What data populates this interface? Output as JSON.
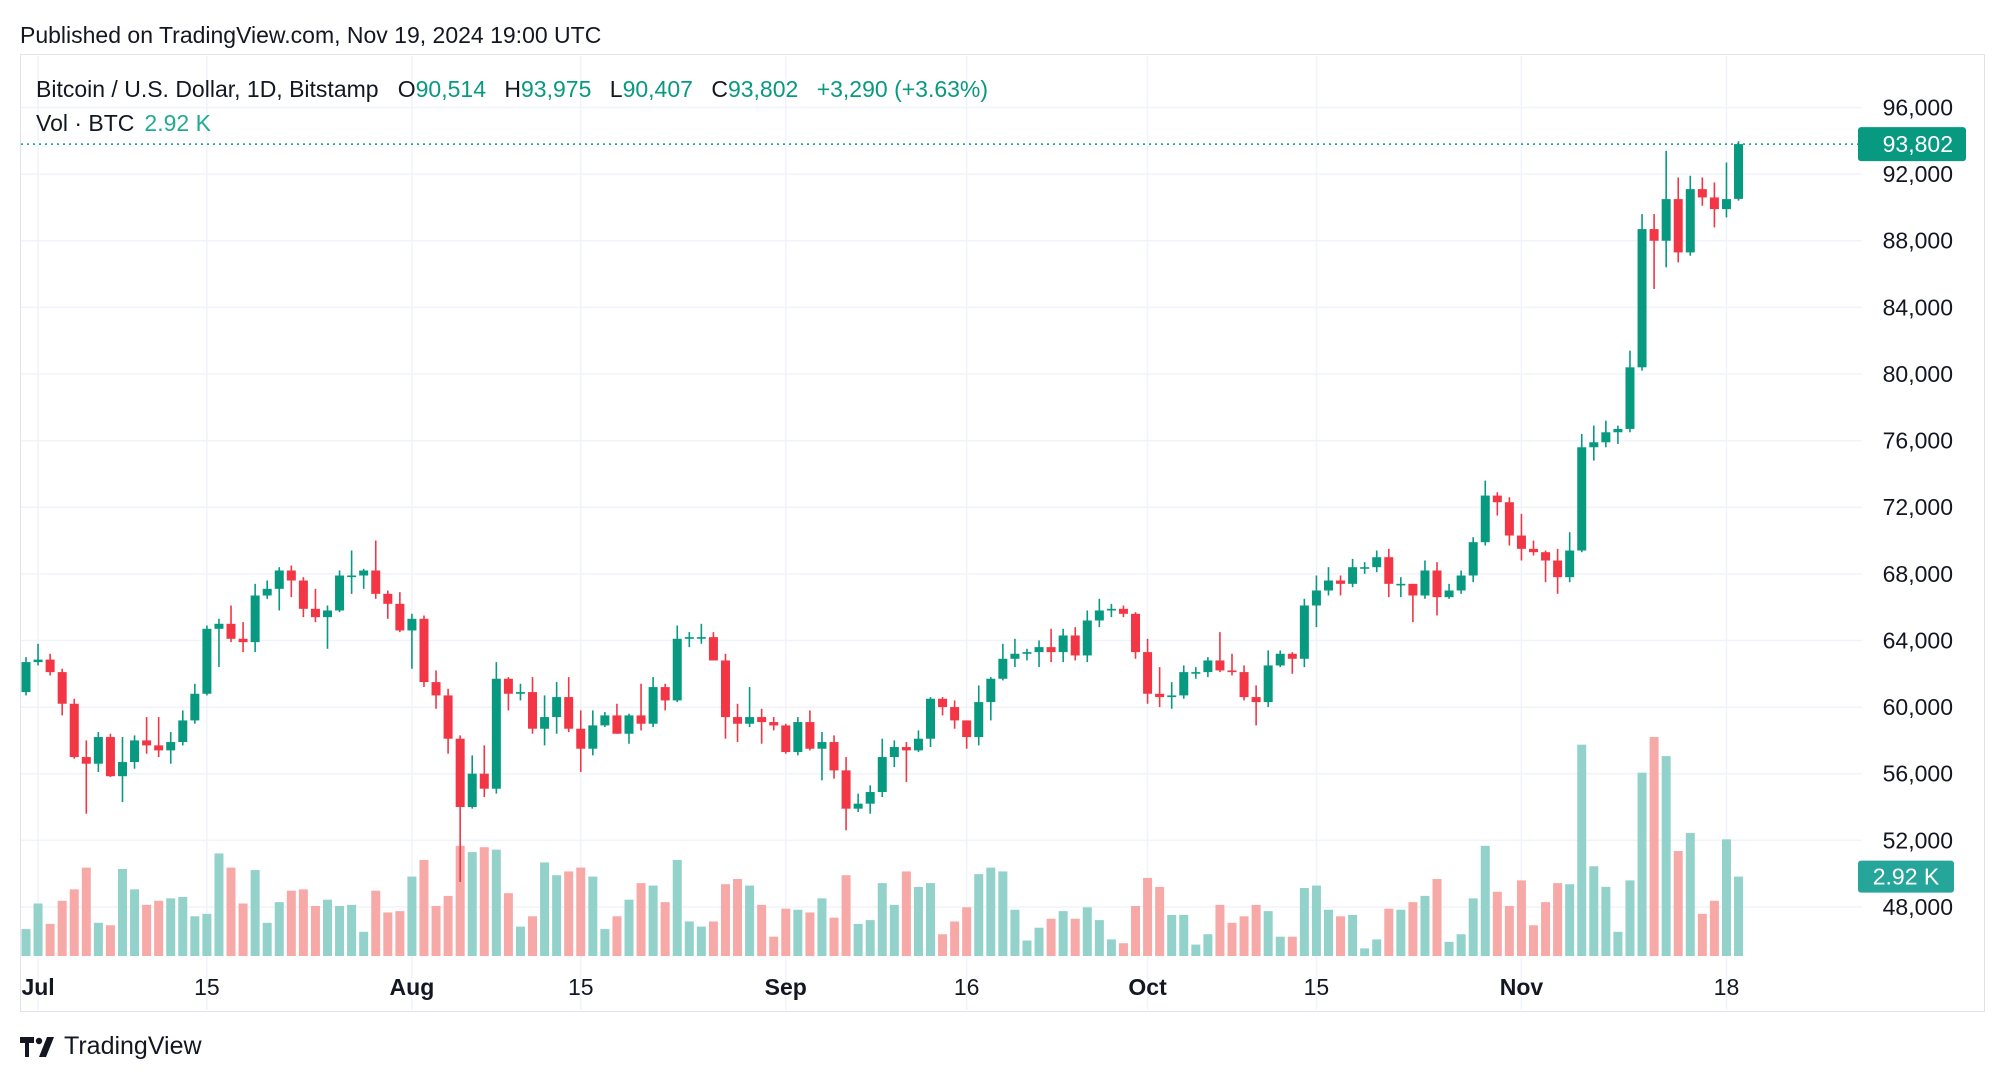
{
  "header": {
    "published": "Published on TradingView.com, Nov 19, 2024 19:00 UTC"
  },
  "legend": {
    "symbol": "Bitcoin / U.S. Dollar, 1D, Bitstamp",
    "o_label": "O",
    "o": "90,514",
    "h_label": "H",
    "h": "93,975",
    "l_label": "L",
    "l": "90,407",
    "c_label": "C",
    "c": "93,802",
    "change": "+3,290 (+3.63%)",
    "vol_label": "Vol · BTC",
    "vol": "2.92 K"
  },
  "footer": {
    "brand": "TradingView",
    "logo": "tradingview-logo-icon"
  },
  "colors": {
    "up": "#089981",
    "down": "#f23645",
    "vol_up": "#92d2ca",
    "vol_down": "#f7a9a7",
    "grid": "#f0f3fa"
  },
  "chart_data": {
    "type": "candlestick",
    "title": "Bitcoin / U.S. Dollar, 1D, Bitstamp",
    "ylim": [
      44000,
      98000
    ],
    "scale": "linear",
    "grid": true,
    "y_ticks": [
      "96,000",
      "92,000",
      "88,000",
      "84,000",
      "80,000",
      "76,000",
      "72,000",
      "68,000",
      "64,000",
      "60,000",
      "56,000",
      "52,000",
      "48,000"
    ],
    "y_tick_values": [
      96000,
      92000,
      88000,
      84000,
      80000,
      76000,
      72000,
      68000,
      64000,
      60000,
      56000,
      52000,
      48000
    ],
    "x_ticks": [
      {
        "date": "2024-07-01",
        "label": "Jul",
        "bold": true
      },
      {
        "date": "2024-07-15",
        "label": "15",
        "bold": false
      },
      {
        "date": "2024-08-01",
        "label": "Aug",
        "bold": true
      },
      {
        "date": "2024-08-15",
        "label": "15",
        "bold": false
      },
      {
        "date": "2024-09-01",
        "label": "Sep",
        "bold": true
      },
      {
        "date": "2024-09-16",
        "label": "16",
        "bold": false
      },
      {
        "date": "2024-10-01",
        "label": "Oct",
        "bold": true
      },
      {
        "date": "2024-10-15",
        "label": "15",
        "bold": false
      },
      {
        "date": "2024-11-01",
        "label": "Nov",
        "bold": true
      },
      {
        "date": "2024-11-18",
        "label": "18",
        "bold": false
      }
    ],
    "last_price_label": "93,802",
    "last_price": 93802,
    "last_volume_label": "2.92 K",
    "columns": [
      "date",
      "open",
      "high",
      "low",
      "close",
      "volume_k"
    ],
    "candles": [
      [
        "2024-06-30",
        60900,
        63000,
        60700,
        62700,
        0.99
      ],
      [
        "2024-07-01",
        62700,
        63800,
        62500,
        62850,
        1.93
      ],
      [
        "2024-07-02",
        62850,
        63200,
        61900,
        62100,
        1.18
      ],
      [
        "2024-07-03",
        62100,
        62300,
        59500,
        60200,
        2.03
      ],
      [
        "2024-07-04",
        60200,
        60500,
        56900,
        57000,
        2.45
      ],
      [
        "2024-07-05",
        57000,
        58000,
        53600,
        56600,
        3.25
      ],
      [
        "2024-07-06",
        56600,
        58500,
        56100,
        58200,
        1.22
      ],
      [
        "2024-07-07",
        58200,
        58400,
        55800,
        55850,
        1.13
      ],
      [
        "2024-07-08",
        55850,
        58200,
        54300,
        56700,
        3.2
      ],
      [
        "2024-07-09",
        56700,
        58300,
        56300,
        58000,
        2.45
      ],
      [
        "2024-07-10",
        58000,
        59400,
        57200,
        57700,
        1.88
      ],
      [
        "2024-07-11",
        57700,
        59400,
        57000,
        57400,
        2.03
      ],
      [
        "2024-07-12",
        57400,
        58500,
        56600,
        57900,
        2.12
      ],
      [
        "2024-07-13",
        57900,
        59800,
        57700,
        59200,
        2.17
      ],
      [
        "2024-07-14",
        59200,
        61400,
        59000,
        60800,
        1.46
      ],
      [
        "2024-07-15",
        60800,
        64900,
        60700,
        64700,
        1.55
      ],
      [
        "2024-07-16",
        64700,
        65300,
        62400,
        65000,
        3.77
      ],
      [
        "2024-07-17",
        65000,
        66100,
        63900,
        64100,
        3.25
      ],
      [
        "2024-07-18",
        64100,
        65100,
        63300,
        63900,
        1.93
      ],
      [
        "2024-07-19",
        63900,
        67400,
        63300,
        66700,
        3.16
      ],
      [
        "2024-07-20",
        66700,
        67600,
        66500,
        67100,
        1.22
      ],
      [
        "2024-07-21",
        67100,
        68400,
        65800,
        68200,
        1.98
      ],
      [
        "2024-07-22",
        68200,
        68500,
        66600,
        67600,
        2.4
      ],
      [
        "2024-07-23",
        67600,
        67800,
        65400,
        65900,
        2.45
      ],
      [
        "2024-07-24",
        65900,
        67100,
        65100,
        65400,
        1.84
      ],
      [
        "2024-07-25",
        65400,
        66100,
        63500,
        65800,
        2.07
      ],
      [
        "2024-07-26",
        65800,
        68200,
        65700,
        67900,
        1.84
      ],
      [
        "2024-07-27",
        67900,
        69400,
        66800,
        67900,
        1.88
      ],
      [
        "2024-07-28",
        67900,
        68300,
        67100,
        68200,
        0.89
      ],
      [
        "2024-07-29",
        68200,
        70000,
        66500,
        66800,
        2.4
      ],
      [
        "2024-07-30",
        66800,
        67000,
        65300,
        66200,
        1.6
      ],
      [
        "2024-07-31",
        66200,
        66900,
        64500,
        64600,
        1.65
      ],
      [
        "2024-08-01",
        64600,
        65600,
        62300,
        65300,
        2.92
      ],
      [
        "2024-08-02",
        65300,
        65500,
        61200,
        61500,
        3.53
      ],
      [
        "2024-08-03",
        61500,
        62200,
        59900,
        60700,
        1.84
      ],
      [
        "2024-08-04",
        60700,
        61100,
        57200,
        58100,
        2.21
      ],
      [
        "2024-08-05",
        58100,
        58300,
        49500,
        54000,
        4.05
      ],
      [
        "2024-08-06",
        54000,
        57100,
        53900,
        56000,
        3.82
      ],
      [
        "2024-08-07",
        56000,
        57700,
        54600,
        55100,
        4.0
      ],
      [
        "2024-08-08",
        55100,
        62700,
        54800,
        61700,
        3.91
      ],
      [
        "2024-08-09",
        61700,
        61800,
        59800,
        60800,
        2.31
      ],
      [
        "2024-08-10",
        60800,
        61400,
        60400,
        60900,
        1.08
      ],
      [
        "2024-08-11",
        60900,
        61800,
        58400,
        58700,
        1.46
      ],
      [
        "2024-08-12",
        58700,
        60700,
        57700,
        59400,
        3.44
      ],
      [
        "2024-08-13",
        59400,
        61500,
        58400,
        60600,
        2.97
      ],
      [
        "2024-08-14",
        60600,
        61800,
        58500,
        58700,
        3.11
      ],
      [
        "2024-08-15",
        58700,
        59800,
        56100,
        57500,
        3.25
      ],
      [
        "2024-08-16",
        57500,
        59800,
        57100,
        58900,
        2.92
      ],
      [
        "2024-08-17",
        58900,
        59700,
        58800,
        59500,
        0.99
      ],
      [
        "2024-08-18",
        59500,
        60200,
        58400,
        58400,
        1.46
      ],
      [
        "2024-08-19",
        58400,
        59600,
        57800,
        59500,
        2.07
      ],
      [
        "2024-08-20",
        59500,
        61400,
        58600,
        59000,
        2.68
      ],
      [
        "2024-08-21",
        59000,
        61800,
        58800,
        61200,
        2.59
      ],
      [
        "2024-08-22",
        61200,
        61400,
        59800,
        60400,
        1.98
      ],
      [
        "2024-08-23",
        60400,
        64900,
        60300,
        64100,
        3.53
      ],
      [
        "2024-08-24",
        64100,
        64500,
        63600,
        64200,
        1.27
      ],
      [
        "2024-08-25",
        64200,
        65000,
        63800,
        64200,
        1.08
      ],
      [
        "2024-08-26",
        64200,
        64500,
        62800,
        62800,
        1.27
      ],
      [
        "2024-08-27",
        62800,
        63200,
        58100,
        59400,
        2.64
      ],
      [
        "2024-08-28",
        59400,
        60200,
        57900,
        59000,
        2.83
      ],
      [
        "2024-08-29",
        59000,
        61200,
        58800,
        59400,
        2.59
      ],
      [
        "2024-08-30",
        59400,
        59900,
        57800,
        59100,
        1.88
      ],
      [
        "2024-08-31",
        59100,
        59400,
        58600,
        58900,
        0.71
      ],
      [
        "2024-09-01",
        58900,
        59000,
        57200,
        57300,
        1.74
      ],
      [
        "2024-09-02",
        57300,
        59400,
        57100,
        59100,
        1.7
      ],
      [
        "2024-09-03",
        59100,
        59800,
        57400,
        57500,
        1.6
      ],
      [
        "2024-09-04",
        57500,
        58500,
        55600,
        57900,
        2.12
      ],
      [
        "2024-09-05",
        57900,
        58300,
        55700,
        56200,
        1.41
      ],
      [
        "2024-09-06",
        56200,
        57000,
        52600,
        53900,
        2.97
      ],
      [
        "2024-09-07",
        53900,
        54800,
        53700,
        54200,
        1.18
      ],
      [
        "2024-09-08",
        54200,
        55300,
        53600,
        54900,
        1.32
      ],
      [
        "2024-09-09",
        54900,
        58100,
        54600,
        57000,
        2.68
      ],
      [
        "2024-09-10",
        57000,
        58000,
        56400,
        57600,
        1.88
      ],
      [
        "2024-09-11",
        57600,
        57900,
        55500,
        57400,
        3.11
      ],
      [
        "2024-09-12",
        57400,
        58600,
        57300,
        58100,
        2.54
      ],
      [
        "2024-09-13",
        58100,
        60600,
        57600,
        60500,
        2.68
      ],
      [
        "2024-09-14",
        60500,
        60600,
        59500,
        60000,
        0.8
      ],
      [
        "2024-09-15",
        60000,
        60400,
        58700,
        59200,
        1.27
      ],
      [
        "2024-09-16",
        59200,
        59200,
        57500,
        58200,
        1.79
      ],
      [
        "2024-09-17",
        58200,
        61300,
        57700,
        60300,
        3.01
      ],
      [
        "2024-09-18",
        60300,
        61800,
        59200,
        61700,
        3.25
      ],
      [
        "2024-09-19",
        61700,
        63800,
        61600,
        62900,
        3.11
      ],
      [
        "2024-09-20",
        62900,
        64100,
        62400,
        63200,
        1.7
      ],
      [
        "2024-09-21",
        63200,
        63500,
        62800,
        63300,
        0.57
      ],
      [
        "2024-09-22",
        63300,
        64000,
        62400,
        63600,
        1.04
      ],
      [
        "2024-09-23",
        63600,
        64700,
        62700,
        63300,
        1.37
      ],
      [
        "2024-09-24",
        63300,
        64700,
        62700,
        64300,
        1.65
      ],
      [
        "2024-09-25",
        64300,
        64800,
        62800,
        63100,
        1.37
      ],
      [
        "2024-09-26",
        63100,
        65800,
        62700,
        65200,
        1.79
      ],
      [
        "2024-09-27",
        65200,
        66500,
        64800,
        65800,
        1.32
      ],
      [
        "2024-09-28",
        65800,
        66200,
        65400,
        65900,
        0.61
      ],
      [
        "2024-09-29",
        65900,
        66100,
        65400,
        65600,
        0.47
      ],
      [
        "2024-09-30",
        65600,
        65700,
        62900,
        63300,
        1.84
      ],
      [
        "2024-10-01",
        63300,
        64100,
        60200,
        60800,
        2.87
      ],
      [
        "2024-10-02",
        60800,
        62400,
        60000,
        60600,
        2.54
      ],
      [
        "2024-10-03",
        60600,
        61500,
        59900,
        60700,
        1.51
      ],
      [
        "2024-10-04",
        60700,
        62500,
        60500,
        62100,
        1.51
      ],
      [
        "2024-10-05",
        62100,
        62400,
        61700,
        62100,
        0.42
      ],
      [
        "2024-10-06",
        62100,
        63000,
        61800,
        62800,
        0.8
      ],
      [
        "2024-10-07",
        62800,
        64500,
        62100,
        62200,
        1.88
      ],
      [
        "2024-10-08",
        62200,
        63200,
        61900,
        62100,
        1.22
      ],
      [
        "2024-10-09",
        62100,
        62500,
        60400,
        60600,
        1.46
      ],
      [
        "2024-10-10",
        60600,
        61300,
        58900,
        60300,
        1.88
      ],
      [
        "2024-10-11",
        60300,
        63400,
        60000,
        62500,
        1.65
      ],
      [
        "2024-10-12",
        62500,
        63400,
        62400,
        63200,
        0.71
      ],
      [
        "2024-10-13",
        63200,
        63300,
        62000,
        62900,
        0.71
      ],
      [
        "2024-10-14",
        62900,
        66500,
        62400,
        66100,
        2.5
      ],
      [
        "2024-10-15",
        66100,
        67900,
        64800,
        67000,
        2.59
      ],
      [
        "2024-10-16",
        67000,
        68400,
        66700,
        67600,
        1.7
      ],
      [
        "2024-10-17",
        67600,
        67900,
        66700,
        67400,
        1.46
      ],
      [
        "2024-10-18",
        67400,
        68900,
        67200,
        68400,
        1.51
      ],
      [
        "2024-10-19",
        68400,
        68700,
        68000,
        68400,
        0.28
      ],
      [
        "2024-10-20",
        68400,
        69400,
        68100,
        69000,
        0.61
      ],
      [
        "2024-10-21",
        69000,
        69500,
        66600,
        67400,
        1.74
      ],
      [
        "2024-10-22",
        67400,
        67800,
        66600,
        67400,
        1.7
      ],
      [
        "2024-10-23",
        67400,
        67400,
        65100,
        66700,
        1.98
      ],
      [
        "2024-10-24",
        66700,
        68800,
        66500,
        68200,
        2.21
      ],
      [
        "2024-10-25",
        68200,
        68700,
        65500,
        66600,
        2.83
      ],
      [
        "2024-10-26",
        66600,
        67400,
        66500,
        67000,
        0.52
      ],
      [
        "2024-10-27",
        67000,
        68200,
        66800,
        67900,
        0.8
      ],
      [
        "2024-10-28",
        67900,
        70200,
        67500,
        69900,
        2.12
      ],
      [
        "2024-10-29",
        69900,
        73600,
        69700,
        72700,
        4.05
      ],
      [
        "2024-10-30",
        72700,
        72900,
        71500,
        72300,
        2.36
      ],
      [
        "2024-10-31",
        72300,
        72600,
        69700,
        70300,
        1.84
      ],
      [
        "2024-11-01",
        70300,
        71600,
        68800,
        69500,
        2.78
      ],
      [
        "2024-11-02",
        69500,
        70000,
        69100,
        69300,
        1.13
      ],
      [
        "2024-11-03",
        69300,
        69400,
        67500,
        68800,
        1.98
      ],
      [
        "2024-11-04",
        68800,
        69500,
        66800,
        67800,
        2.68
      ],
      [
        "2024-11-05",
        67800,
        70500,
        67500,
        69400,
        2.64
      ],
      [
        "2024-11-06",
        69400,
        76400,
        69300,
        75600,
        7.77
      ],
      [
        "2024-11-07",
        75600,
        76900,
        74800,
        75900,
        3.3
      ],
      [
        "2024-11-08",
        75900,
        77200,
        75600,
        76500,
        2.54
      ],
      [
        "2024-11-09",
        76500,
        76900,
        75800,
        76700,
        0.89
      ],
      [
        "2024-11-10",
        76700,
        81400,
        76500,
        80400,
        2.78
      ],
      [
        "2024-11-11",
        80400,
        89600,
        80200,
        88700,
        6.74
      ],
      [
        "2024-11-12",
        88700,
        89600,
        85100,
        88000,
        8.05
      ],
      [
        "2024-11-13",
        88000,
        93400,
        86400,
        90500,
        7.35
      ],
      [
        "2024-11-14",
        90500,
        91800,
        86700,
        87300,
        3.86
      ],
      [
        "2024-11-15",
        87300,
        91900,
        87100,
        91100,
        4.52
      ],
      [
        "2024-11-16",
        91100,
        91800,
        90100,
        90600,
        1.55
      ],
      [
        "2024-11-17",
        90600,
        91500,
        88800,
        89900,
        2.03
      ],
      [
        "2024-11-18",
        89900,
        92700,
        89400,
        90500,
        4.29
      ],
      [
        "2024-11-19",
        90514,
        93975,
        90407,
        93802,
        2.92
      ]
    ]
  }
}
